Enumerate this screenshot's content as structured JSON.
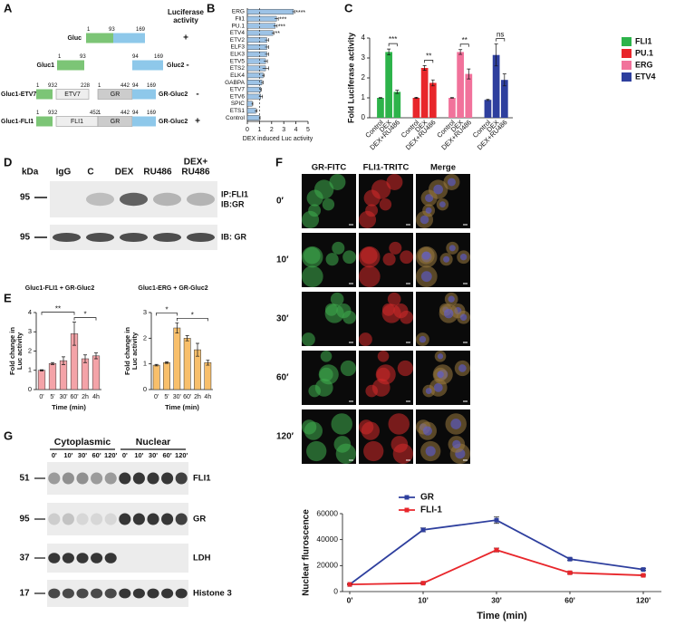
{
  "panel_letters": [
    "A",
    "B",
    "C",
    "D",
    "E",
    "F",
    "G"
  ],
  "panels": {
    "A": {
      "header": [
        "Luciferase",
        "activity"
      ],
      "rows": [
        {
          "construct": "Gluc",
          "numbers": [
            "1",
            "93",
            "169"
          ],
          "result": "+"
        },
        {
          "construct": "Gluc1",
          "numbers": [
            "1",
            "93"
          ],
          "partner": "Gluc2",
          "partner_numbers": [
            "94",
            "169"
          ],
          "result": "-"
        },
        {
          "construct": "Gluc1-ETV7",
          "domain": "ETV7",
          "numbers": [
            "1",
            "93",
            "2",
            "228"
          ],
          "partner": "GR-Gluc2",
          "partner_domain": "GR",
          "partner_numbers": [
            "1",
            "442",
            "94",
            "169"
          ],
          "result": "-"
        },
        {
          "construct": "Gluc1-FLI1",
          "domain": "FLI1",
          "numbers": [
            "1",
            "93",
            "2",
            "452"
          ],
          "partner": "GR-Gluc2",
          "partner_domain": "GR",
          "partner_numbers": [
            "1",
            "442",
            "94",
            "169"
          ],
          "result": "+"
        }
      ]
    },
    "D": {
      "kda": "kDa",
      "lanes": [
        [
          "IgG"
        ],
        [
          "C"
        ],
        [
          "DEX"
        ],
        [
          "RU486"
        ],
        [
          "DEX+",
          "RU486"
        ]
      ],
      "markers": [
        "95",
        "95"
      ],
      "labels": [
        [
          "IP:FLI1",
          "IB:GR"
        ],
        [
          "IB: GR"
        ]
      ]
    },
    "F": {
      "columns": [
        "GR-FITC",
        "FLI1-TRITC",
        "Merge"
      ],
      "rows": [
        "0′",
        "10′",
        "30′",
        "60′",
        "120′"
      ]
    },
    "G": {
      "groups": [
        "Cytoplasmic",
        "Nuclear"
      ],
      "lanes": [
        "0'",
        "10'",
        "30'",
        "60'",
        "120'",
        "0'",
        "10'",
        "30'",
        "60'",
        "120'"
      ],
      "blots": [
        {
          "kda": "51",
          "label": "FLI1"
        },
        {
          "kda": "95",
          "label": "GR"
        },
        {
          "kda": "37",
          "label": "LDH"
        },
        {
          "kda": "17",
          "label": "Histone 3"
        }
      ]
    }
  },
  "chart_data": [
    {
      "type": "bar",
      "orientation": "horizontal",
      "color": "#9dc3e6",
      "categories": [
        "ERG",
        "Fli1",
        "PU.1",
        "ETV4",
        "ETV2",
        "ELF3",
        "ELK3",
        "ETV5",
        "ETS2",
        "ELK4",
        "GABPA",
        "ETV7",
        "ETV6",
        "SPIC",
        "ETS1",
        "Control"
      ],
      "values": [
        3.8,
        2.4,
        2.3,
        2.1,
        1.6,
        1.6,
        1.6,
        1.5,
        1.5,
        1.3,
        1.2,
        1.1,
        1.1,
        0.4,
        0.7,
        1.0
      ],
      "errors": [
        0.1,
        0.15,
        0.15,
        0.1,
        0.15,
        0.15,
        0.15,
        0.15,
        0.25,
        0.1,
        0.1,
        0.05,
        0.15,
        0.05,
        0.1,
        0.05
      ],
      "value_annotations": [
        "****",
        "***",
        "***",
        "**",
        null,
        null,
        null,
        null,
        null,
        null,
        null,
        null,
        null,
        null,
        null,
        null
      ],
      "reference_line": 1,
      "xlim": [
        0,
        5
      ],
      "xticks": [
        0,
        1,
        2,
        3,
        4,
        5
      ],
      "xlabel": "DEX induced Luc activity"
    },
    {
      "type": "bar",
      "categories": [
        "Control",
        "DEX",
        "DEX+RU486"
      ],
      "series": [
        {
          "name": "FLI1",
          "color": "#2db34a",
          "values": [
            1,
            3.3,
            1.3
          ],
          "errors": [
            0.02,
            0.15,
            0.08
          ],
          "significance": "***"
        },
        {
          "name": "PU.1",
          "color": "#e8262b",
          "values": [
            1,
            2.5,
            1.75
          ],
          "errors": [
            0.03,
            0.12,
            0.15
          ],
          "significance": "**"
        },
        {
          "name": "ERG",
          "color": "#f1729b",
          "values": [
            1,
            3.3,
            2.2
          ],
          "errors": [
            0.02,
            0.12,
            0.25
          ],
          "significance": "**"
        },
        {
          "name": "ETV4",
          "color": "#2e3f9e",
          "values": [
            0.9,
            3.15,
            1.9
          ],
          "errors": [
            0.03,
            0.55,
            0.3
          ],
          "significance": "ns"
        }
      ],
      "ylim": [
        0,
        4
      ],
      "yticks": [
        0,
        1,
        2,
        3,
        4
      ],
      "ylabel": "Fold Luciferase activity",
      "legend": "top-right"
    },
    {
      "type": "bar",
      "title": "Gluc1-FLI1 + GR-Gluc2",
      "color": "#f4a3a8",
      "categories": [
        "0'",
        "5'",
        "30'",
        "60'",
        "2h",
        "4h"
      ],
      "values": [
        1,
        1.35,
        1.5,
        2.9,
        1.6,
        1.75
      ],
      "errors": [
        0.03,
        0.05,
        0.2,
        0.6,
        0.2,
        0.15
      ],
      "comparisons": [
        {
          "between": [
            "0'",
            "60'"
          ],
          "label": "**"
        },
        {
          "between": [
            "60'",
            "4h"
          ],
          "label": "*"
        }
      ],
      "ylim": [
        0,
        4
      ],
      "yticks": [
        0,
        1,
        2,
        3,
        4
      ],
      "ylabel": [
        "Fold change in",
        "Luc activity"
      ],
      "xlabel": "Time (min)"
    },
    {
      "type": "bar",
      "title": "Gluc1-ERG + GR-Gluc2",
      "color": "#f8bf6b",
      "categories": [
        "0'",
        "5'",
        "30'",
        "60'",
        "2h",
        "4h"
      ],
      "values": [
        0.95,
        1.05,
        2.4,
        2.0,
        1.55,
        1.05
      ],
      "errors": [
        0.03,
        0.03,
        0.2,
        0.1,
        0.25,
        0.1
      ],
      "comparisons": [
        {
          "between": [
            "0'",
            "30'"
          ],
          "label": "*"
        },
        {
          "between": [
            "30'",
            "4h"
          ],
          "label": "*"
        }
      ],
      "ylim": [
        0,
        3
      ],
      "yticks": [
        0,
        1,
        2,
        3
      ],
      "ylabel": [
        "Fold change in",
        "Luc activity"
      ],
      "xlabel": "Time (min)"
    },
    {
      "type": "line",
      "categories": [
        "0'",
        "10'",
        "30'",
        "60'",
        "120'"
      ],
      "series": [
        {
          "name": "GR",
          "color": "#2e3f9e",
          "values": [
            5500,
            47500,
            55000,
            25000,
            17000
          ],
          "errors": [
            500,
            1500,
            2500,
            800,
            700
          ]
        },
        {
          "name": "FLI-1",
          "color": "#e8262b",
          "values": [
            5500,
            6500,
            32000,
            14500,
            12500
          ],
          "errors": [
            400,
            400,
            1500,
            800,
            600
          ]
        }
      ],
      "ylim": [
        0,
        60000
      ],
      "yticks": [
        0,
        20000,
        40000,
        60000
      ],
      "ylabel": "Nuclear fluroscence",
      "xlabel": "Time (min)",
      "legend": "top-left"
    }
  ]
}
